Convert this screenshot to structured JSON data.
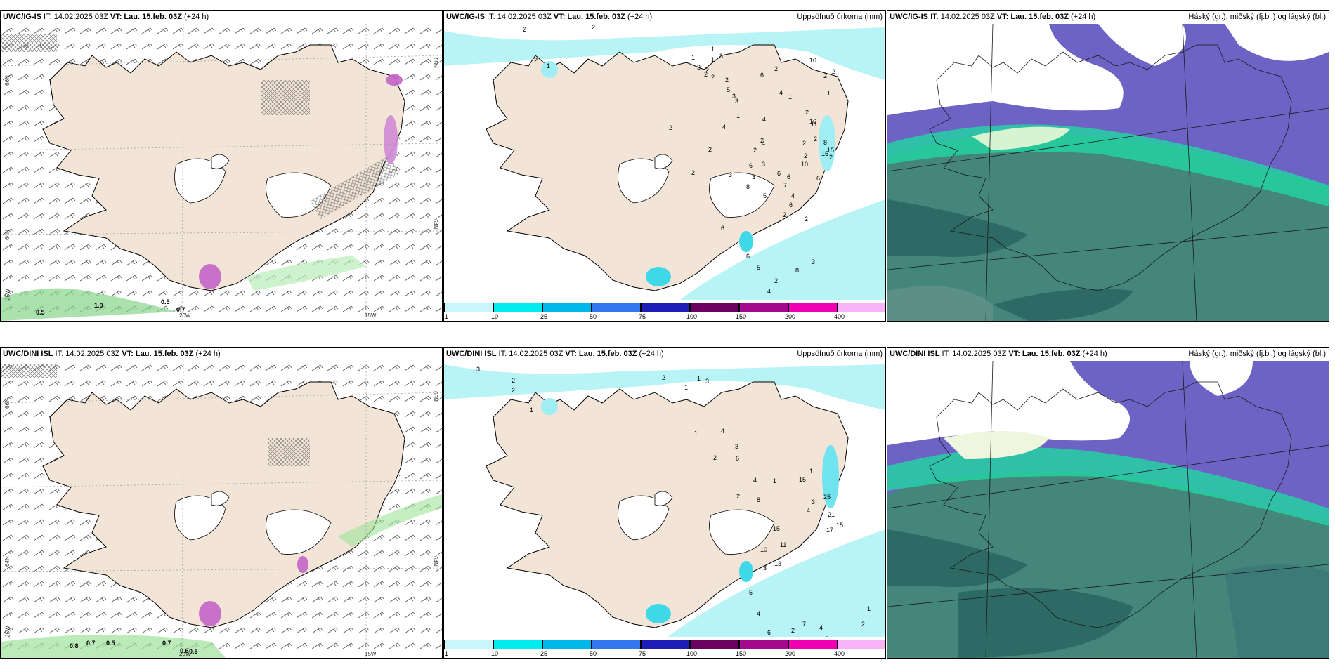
{
  "rows": [
    {
      "model": "UWC/IG-IS",
      "it_text": " IT: 14.02.2025 03Z ",
      "vt_text": "VT: Lau. 15.feb. 03Z",
      "lead": " (+24 h)"
    },
    {
      "model": "UWC/DINI ISL",
      "it_text": " IT: 14.02.2025 03Z ",
      "vt_text": "VT: Lau. 15.feb. 03Z",
      "lead": " (+24 h)"
    }
  ],
  "precip_title": "Uppsöfnuð úrkoma (mm)",
  "cloud_title": "Háský (gr.), miðský (fj.bl.) og lágský (bl.)",
  "colorbar": {
    "ticks": [
      "1",
      "10",
      "25",
      "50",
      "75",
      "100",
      "150",
      "200",
      "400"
    ],
    "colors": [
      "#c8f6fa",
      "#00ecf0",
      "#00b7ea",
      "#3277ee",
      "#1d1db8",
      "#6a0060",
      "#a3088d",
      "#f000b3",
      "#f6b3f5"
    ]
  },
  "axis_labels": {
    "lat66": "66N",
    "lat64": "64N",
    "lon25": "25W",
    "lon20": "20W",
    "lon15": "15W",
    "r65": "65N",
    "r64": "64N"
  },
  "wind_left_values": {
    "top": [
      "0.5",
      "1.0",
      "0.5",
      "0.7"
    ],
    "bottom": [
      "0.8",
      "0.7",
      "0.5",
      "0.7",
      "0.6",
      "0.5"
    ]
  },
  "precip_top_values": [
    "2",
    "2",
    "1",
    "1",
    "1",
    "3",
    "2",
    "2",
    "2",
    "1",
    "3",
    "2",
    "2",
    "5",
    "3",
    "3",
    "6",
    "2",
    "10",
    "2",
    "2",
    "1",
    "4",
    "4",
    "1",
    "2",
    "11",
    "16",
    "8",
    "2",
    "2",
    "2",
    "10",
    "2",
    "15",
    "2",
    "4",
    "3",
    "3",
    "8",
    "6",
    "6",
    "7",
    "5",
    "4",
    "6",
    "4",
    "1",
    "2",
    "3",
    "6",
    "2",
    "2",
    "2",
    "2",
    "6",
    "6",
    "4",
    "8",
    "3",
    "2",
    "5",
    "2",
    "15",
    "6"
  ],
  "precip_bottom_values": [
    "3",
    "2",
    "2",
    "1",
    "1",
    "1",
    "3",
    "2",
    "1",
    "4",
    "1",
    "2",
    "3",
    "6",
    "4",
    "8",
    "2",
    "1",
    "1",
    "15",
    "3",
    "25",
    "4",
    "21",
    "15",
    "13",
    "11",
    "10",
    "15",
    "17",
    "3",
    "5",
    "4",
    "6",
    "7",
    "2",
    "4",
    "3",
    "5",
    "6",
    "7",
    "2",
    "1",
    "11",
    "6"
  ]
}
